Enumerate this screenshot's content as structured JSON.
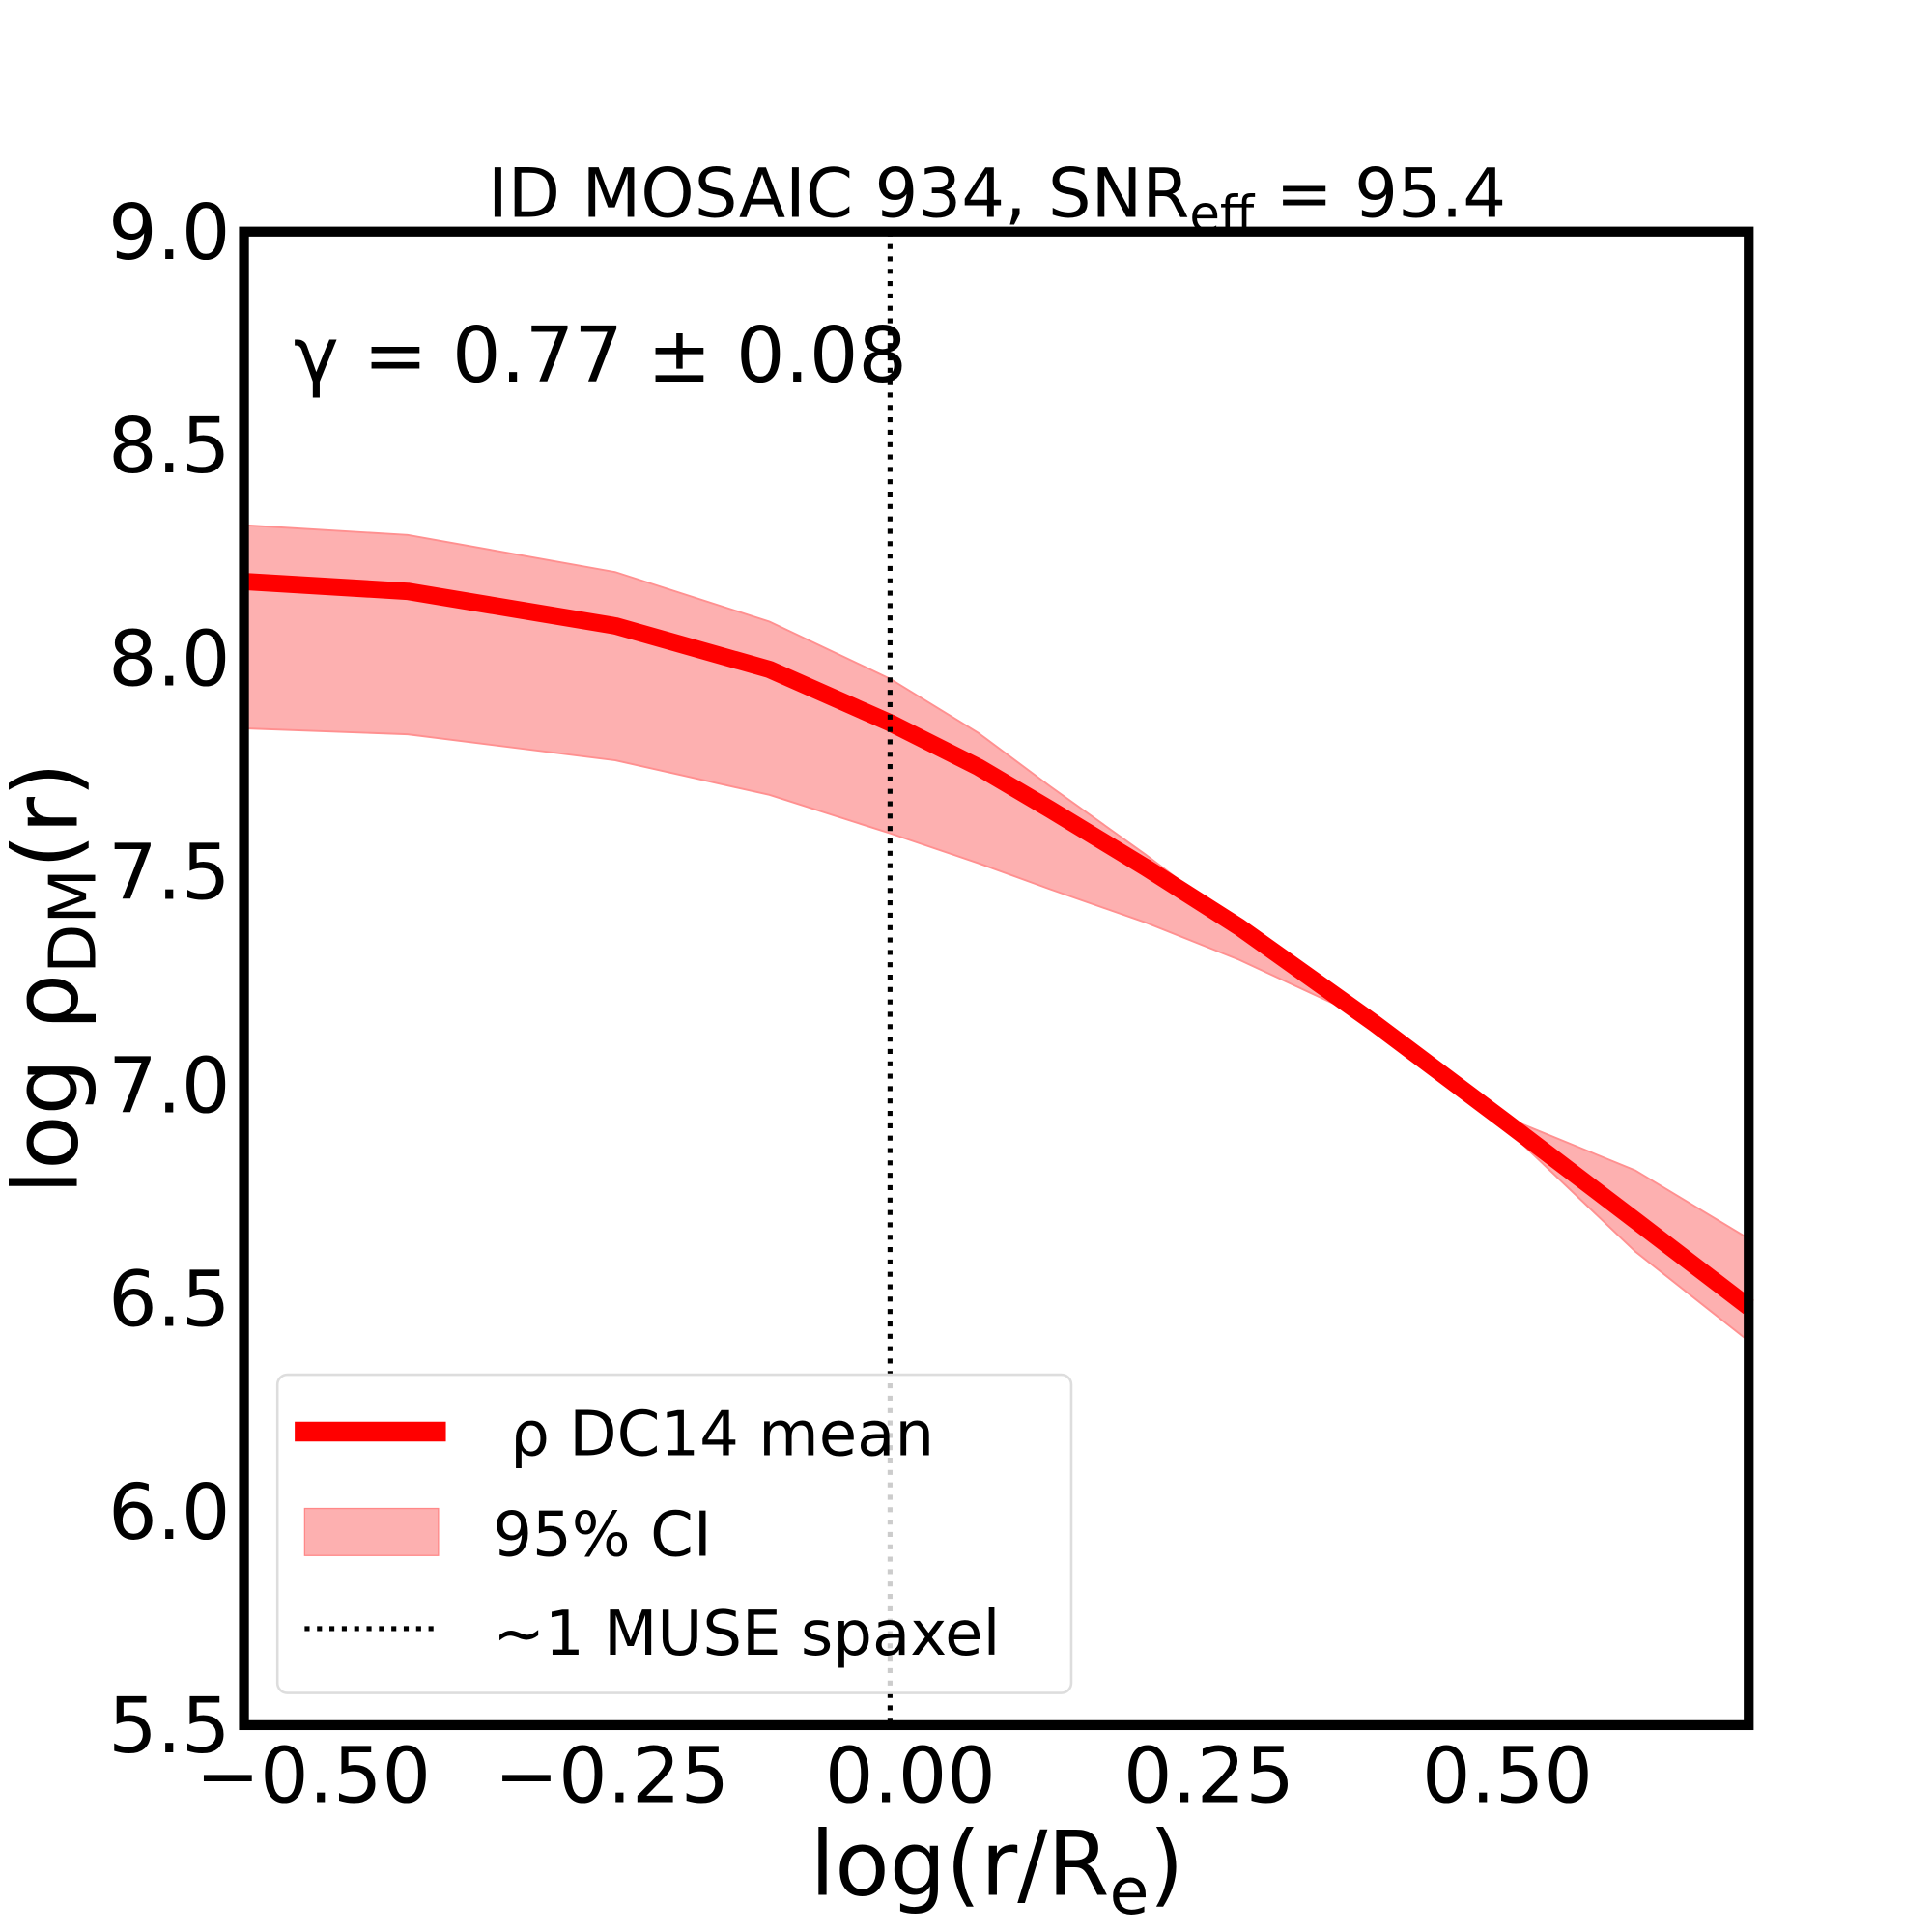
{
  "chart_data": {
    "type": "line",
    "title": "ID MOSAIC 934, SNR",
    "title_sub": "eff",
    "title_suffix": " = 95.4",
    "annotation": "γ = 0.77 ± 0.08",
    "xlabel": "log(r/R",
    "xlabel_sub": "e",
    "xlabel_suffix": ")",
    "ylabel": "log ρ",
    "ylabel_sub": "DM",
    "ylabel_suffix": "(r)",
    "xlim": [
      -0.558,
      0.702
    ],
    "ylim": [
      5.5,
      9.0
    ],
    "xticks": [
      -0.5,
      -0.25,
      0.0,
      0.25,
      0.5
    ],
    "xtick_labels": [
      "−0.50",
      "−0.25",
      "0.00",
      "0.25",
      "0.50"
    ],
    "yticks": [
      5.5,
      6.0,
      6.5,
      7.0,
      7.5,
      8.0,
      8.5,
      9.0
    ],
    "ytick_labels": [
      "5.5",
      "6.0",
      "6.5",
      "7.0",
      "7.5",
      "8.0",
      "8.5",
      "9.0"
    ],
    "grid": false,
    "legend_position": "lower-left",
    "x": [
      -0.558,
      -0.421,
      -0.247,
      -0.118,
      -0.017,
      0.057,
      0.117,
      0.197,
      0.275,
      0.389,
      0.498,
      0.607,
      0.702
    ],
    "series": [
      {
        "name": "ρ DC14 mean",
        "color": "#ff0000",
        "values": [
          8.18,
          8.157,
          8.076,
          7.974,
          7.849,
          7.745,
          7.646,
          7.51,
          7.371,
          7.144,
          6.915,
          6.683,
          6.48
        ]
      }
    ],
    "band": {
      "name": "95% CI",
      "color": "#fdb0b0",
      "upper": [
        8.312,
        8.289,
        8.202,
        8.086,
        7.952,
        7.825,
        7.7,
        7.54,
        7.375,
        7.146,
        6.925,
        6.8,
        6.64
      ],
      "lower": [
        7.836,
        7.822,
        7.761,
        7.68,
        7.59,
        7.52,
        7.459,
        7.381,
        7.294,
        7.146,
        6.9,
        6.61,
        6.4
      ]
    },
    "vline": {
      "name": "~1 MUSE spaxel",
      "x": -0.017,
      "style": "dotted"
    }
  }
}
